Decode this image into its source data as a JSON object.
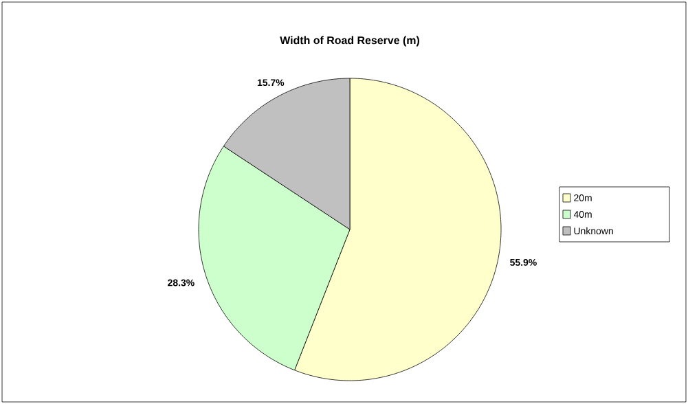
{
  "chart_data": {
    "type": "pie",
    "title": "Width of Road Reserve (m)",
    "categories": [
      "20m",
      "40m",
      "Unknown"
    ],
    "values": [
      55.9,
      28.3,
      15.7
    ],
    "colors": [
      "#ffffcc",
      "#ccffcc",
      "#c0c0c0"
    ],
    "value_labels": [
      "55.9%",
      "28.3%",
      "15.7%"
    ],
    "legend": "right"
  }
}
